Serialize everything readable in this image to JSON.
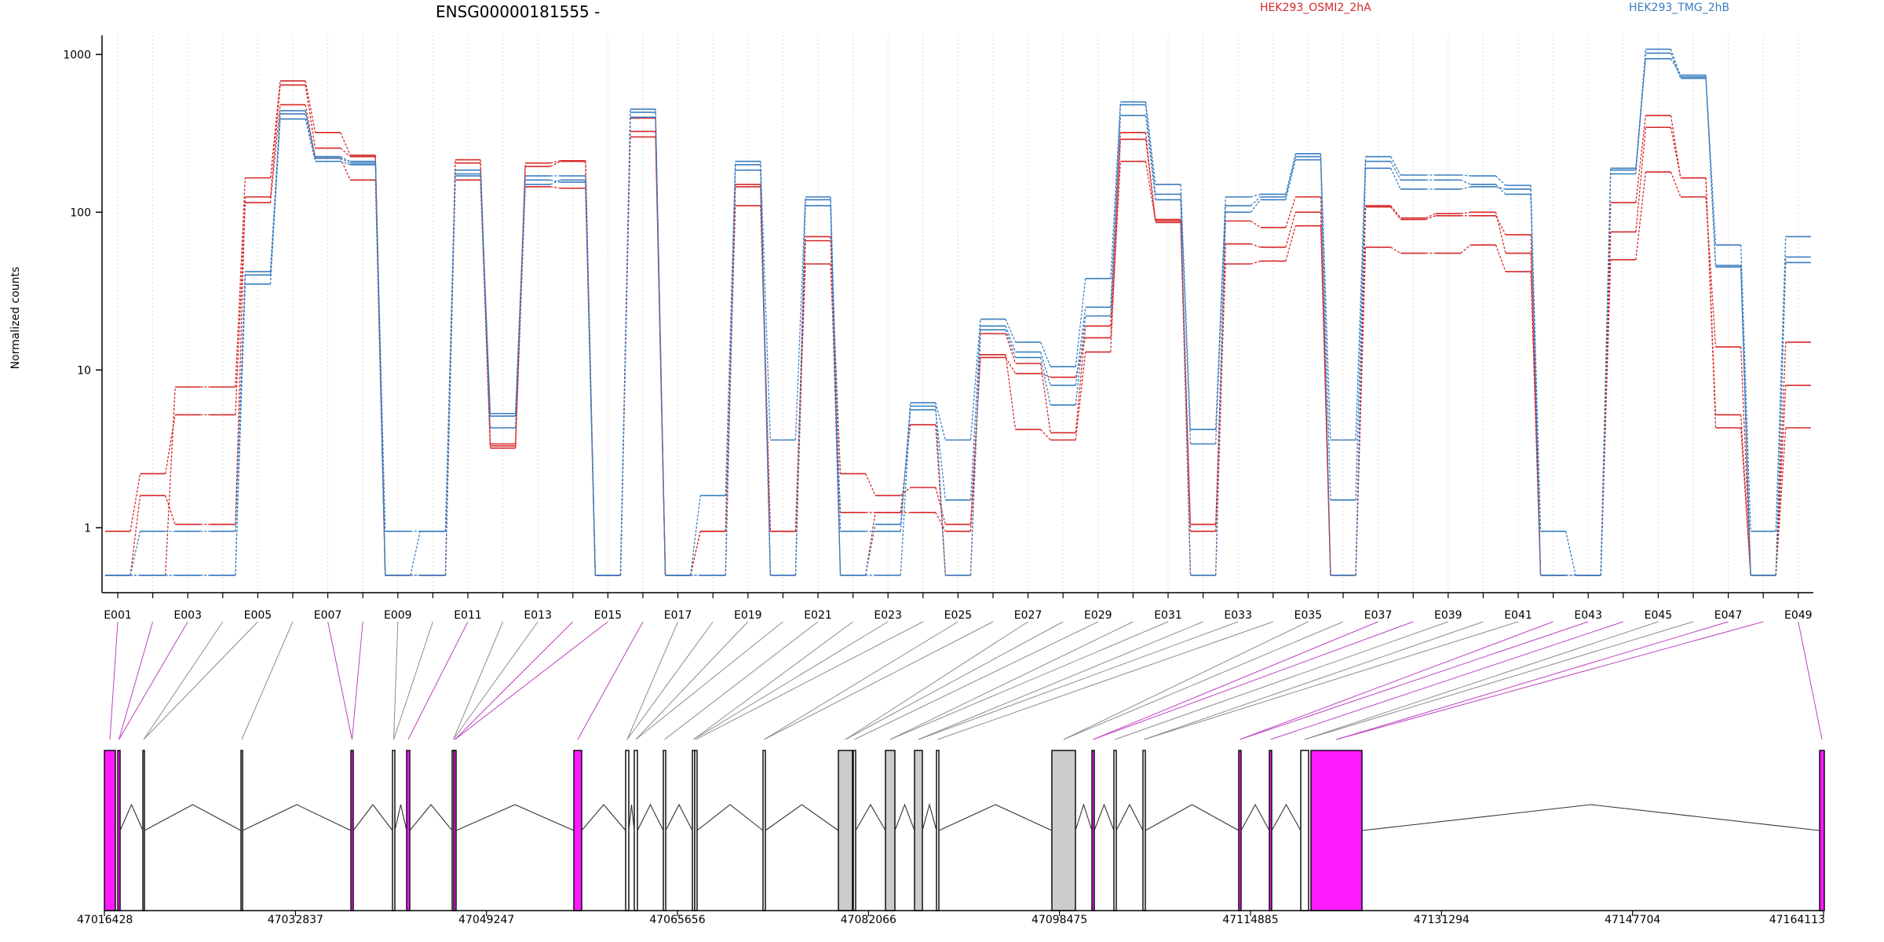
{
  "chart_data": {
    "type": "line",
    "title": "ENSG00000181555 -",
    "xlabel": "",
    "ylabel": "Normalized counts",
    "yscale": "log",
    "ylim": [
      0.45,
      1400
    ],
    "yticks": [
      "1",
      "10",
      "100",
      "1000"
    ],
    "grid": "vertical dotted",
    "legend_position": "top",
    "colors": {
      "OSMI2": "#d62728",
      "TMG": "#3a7dbf",
      "exon_hit": "#ff1aff",
      "exon_other": "#cccccc"
    },
    "categories": [
      "E001",
      "E002",
      "E003",
      "E004",
      "E005",
      "E006",
      "E007",
      "E008",
      "E009",
      "E010",
      "E011",
      "E012",
      "E013",
      "E014",
      "E015",
      "E016",
      "E017",
      "E018",
      "E019",
      "E020",
      "E021",
      "E022",
      "E023",
      "E024",
      "E025",
      "E026",
      "E027",
      "E028",
      "E029",
      "E030",
      "E031",
      "E032",
      "E033",
      "E034",
      "E035",
      "E036",
      "E037",
      "E038",
      "E039",
      "E040",
      "E041",
      "E042",
      "E043",
      "E044",
      "E045",
      "E046",
      "E047",
      "E048",
      "E049"
    ],
    "tick_labels": [
      "E001",
      "E003",
      "E005",
      "E007",
      "E009",
      "E011",
      "E013",
      "E015",
      "E017",
      "E019",
      "E021",
      "E023",
      "E025",
      "E027",
      "E029",
      "E031",
      "E033",
      "E035",
      "E037",
      "E039",
      "E041",
      "E043",
      "E045",
      "E047",
      "E049"
    ],
    "series": [
      {
        "group": "HEK293_OSMI2_2hA",
        "values": [
          0.95,
          2.2,
          5.2,
          5.2,
          115,
          480,
          220,
          160,
          0.5,
          0.5,
          160,
          3.2,
          145,
          142,
          0.5,
          300,
          0.5,
          0.95,
          145,
          0.95,
          47,
          1.25,
          1.25,
          1.25,
          0.95,
          12,
          9.5,
          9,
          16,
          210,
          88,
          1.05,
          47,
          49,
          82,
          0.5,
          60,
          55,
          55,
          62,
          42,
          0.5,
          0.5,
          50,
          180,
          125,
          14,
          0.5,
          8
        ]
      },
      {
        "group": "HEK293_OSMI2_2hA",
        "values": [
          0.5,
          1.6,
          1.05,
          1.05,
          125,
          640,
          255,
          225,
          0.5,
          0.5,
          205,
          3.3,
          205,
          212,
          0.5,
          325,
          0.5,
          0.95,
          110,
          0.95,
          70,
          2.2,
          1.6,
          1.8,
          1.05,
          12.5,
          4.2,
          3.6,
          13,
          290,
          90,
          0.95,
          88,
          80,
          125,
          0.5,
          108,
          90,
          95,
          95,
          72,
          0.5,
          0.5,
          75,
          345,
          165,
          4.3,
          0.5,
          4.3
        ]
      },
      {
        "group": "HEK293_OSMI2_2hA",
        "values": [
          0.5,
          0.5,
          7.8,
          7.8,
          165,
          680,
          320,
          230,
          0.5,
          0.5,
          215,
          3.4,
          195,
          210,
          0.5,
          395,
          0.5,
          0.5,
          150,
          0.5,
          66,
          0.5,
          1.25,
          4.5,
          0.5,
          17,
          11,
          4,
          19,
          320,
          86,
          0.5,
          63,
          60,
          100,
          0.5,
          110,
          92,
          98,
          100,
          55,
          0.5,
          0.5,
          115,
          410,
          165,
          5.2,
          0.5,
          15
        ]
      },
      {
        "group": "HEK293_TMG_2hB",
        "values": [
          0.5,
          0.95,
          0.95,
          0.95,
          42,
          440,
          225,
          210,
          0.95,
          0.95,
          185,
          5.3,
          170,
          170,
          0.5,
          450,
          0.5,
          1.6,
          210,
          3.6,
          125,
          0.95,
          0.95,
          6.2,
          3.6,
          21,
          15,
          10.5,
          38,
          500,
          150,
          4.2,
          125,
          130,
          235,
          3.6,
          225,
          172,
          172,
          170,
          148,
          0.95,
          0.5,
          185,
          1080,
          720,
          62,
          0.95,
          70
        ]
      },
      {
        "group": "HEK293_TMG_2hB",
        "values": [
          0.5,
          0.5,
          0.5,
          0.5,
          35,
          390,
          210,
          200,
          0.5,
          0.95,
          175,
          4.3,
          160,
          155,
          0.5,
          400,
          0.5,
          0.5,
          185,
          0.5,
          110,
          0.5,
          1.05,
          5.6,
          1.5,
          19,
          13,
          8,
          25,
          480,
          130,
          3.4,
          110,
          125,
          225,
          1.5,
          210,
          160,
          160,
          150,
          130,
          0.5,
          0.5,
          175,
          1020,
          705,
          45,
          0.5,
          52
        ]
      },
      {
        "group": "HEK293_TMG_2hB",
        "values": [
          0.5,
          0.5,
          0.5,
          0.5,
          40,
          420,
          220,
          205,
          0.5,
          0.5,
          170,
          5.1,
          150,
          160,
          0.5,
          430,
          0.5,
          0.5,
          200,
          0.5,
          120,
          0.5,
          0.5,
          5.9,
          0.5,
          18,
          12,
          6,
          22,
          410,
          120,
          0.5,
          100,
          120,
          215,
          0.5,
          190,
          140,
          140,
          145,
          140,
          0.5,
          0.5,
          190,
          940,
          740,
          46,
          0.5,
          48
        ]
      }
    ]
  },
  "legend": {
    "group_a": "HEK293_OSMI2_2hA",
    "group_b": "HEK293_TMG_2hB"
  },
  "gene_model": {
    "coordinates": [
      "47016428",
      "47032837",
      "47049247",
      "47065656",
      "47082066",
      "47098475",
      "47114885",
      "47131294",
      "47147704",
      "47164113"
    ]
  }
}
